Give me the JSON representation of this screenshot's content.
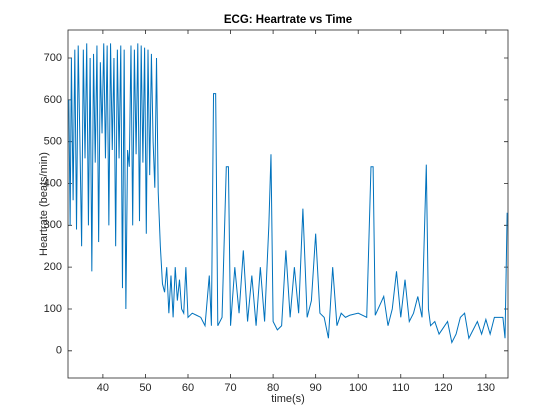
{
  "chart_data": {
    "type": "line",
    "title": "ECG: Heartrate vs Time",
    "x_label": "time(s)",
    "y_label": "Heartrate (beats/min)",
    "x": [
      32.0,
      32.3,
      32.6,
      33.0,
      33.4,
      33.8,
      34.2,
      34.6,
      35.0,
      35.4,
      35.8,
      36.2,
      36.6,
      37.0,
      37.4,
      37.8,
      38.2,
      38.6,
      39.0,
      39.4,
      39.8,
      40.2,
      40.6,
      41.0,
      41.4,
      41.8,
      42.2,
      42.6,
      43.0,
      43.4,
      43.8,
      44.2,
      44.6,
      45.0,
      45.4,
      45.8,
      46.2,
      46.6,
      47.0,
      47.4,
      47.8,
      48.2,
      48.6,
      49.0,
      49.4,
      49.8,
      50.2,
      50.6,
      51.0,
      51.4,
      51.8,
      52.2,
      52.6,
      53.0,
      53.5,
      54.0,
      54.5,
      55.0,
      55.5,
      56.0,
      56.5,
      57.0,
      57.5,
      58.0,
      58.5,
      59.0,
      59.5,
      60.0,
      61.0,
      62.0,
      63.0,
      64.0,
      65.0,
      65.5,
      66.0,
      66.5,
      67.0,
      68.0,
      69.0,
      69.5,
      70.0,
      71.0,
      72.0,
      73.0,
      74.0,
      75.0,
      76.0,
      77.0,
      78.0,
      79.0,
      79.5,
      80.0,
      81.0,
      82.0,
      83.0,
      84.0,
      85.0,
      86.0,
      87.0,
      88.0,
      89.0,
      90.0,
      91.0,
      92.0,
      93.0,
      94.0,
      95.0,
      96.0,
      97.0,
      98.0,
      100.0,
      102.0,
      103.0,
      103.5,
      104.0,
      106.0,
      107.0,
      108.0,
      109.0,
      110.0,
      111.0,
      112.0,
      113.0,
      114.0,
      115.0,
      116.0,
      116.5,
      117.0,
      118.0,
      119.0,
      120.0,
      121.0,
      122.0,
      123.0,
      124.0,
      125.0,
      126.0,
      128.0,
      129.0,
      130.0,
      131.0,
      132.0,
      133.0,
      134.0,
      134.5,
      135.0
    ],
    "series": [
      {
        "color": "#0072bd",
        "values": [
          600,
          300,
          700,
          360,
          720,
          290,
          730,
          500,
          250,
          720,
          460,
          735,
          300,
          700,
          190,
          710,
          450,
          730,
          260,
          690,
          520,
          735,
          460,
          730,
          300,
          735,
          480,
          700,
          250,
          720,
          460,
          730,
          150,
          720,
          100,
          480,
          440,
          730,
          300,
          720,
          470,
          735,
          310,
          730,
          450,
          725,
          280,
          720,
          420,
          710,
          500,
          390,
          700,
          380,
          250,
          160,
          140,
          200,
          90,
          180,
          80,
          200,
          120,
          170,
          100,
          90,
          200,
          80,
          90,
          85,
          80,
          60,
          180,
          60,
          615,
          615,
          60,
          80,
          440,
          440,
          60,
          200,
          90,
          240,
          70,
          180,
          60,
          200,
          70,
          300,
          470,
          70,
          50,
          60,
          240,
          80,
          200,
          90,
          340,
          80,
          120,
          280,
          90,
          80,
          30,
          200,
          60,
          90,
          80,
          85,
          90,
          80,
          440,
          440,
          85,
          130,
          60,
          100,
          190,
          80,
          170,
          70,
          90,
          130,
          80,
          445,
          100,
          60,
          70,
          40,
          55,
          70,
          20,
          40,
          80,
          90,
          30,
          70,
          40,
          75,
          40,
          80,
          80,
          80,
          30,
          330
        ]
      }
    ],
    "xlim": [
      31.8,
      135.2
    ],
    "ylim": [
      -65,
      767
    ],
    "xticks": [
      40,
      50,
      60,
      70,
      80,
      90,
      100,
      110,
      120,
      130
    ],
    "yticks": [
      0,
      100,
      200,
      300,
      400,
      500,
      600,
      700
    ],
    "grid": false
  }
}
